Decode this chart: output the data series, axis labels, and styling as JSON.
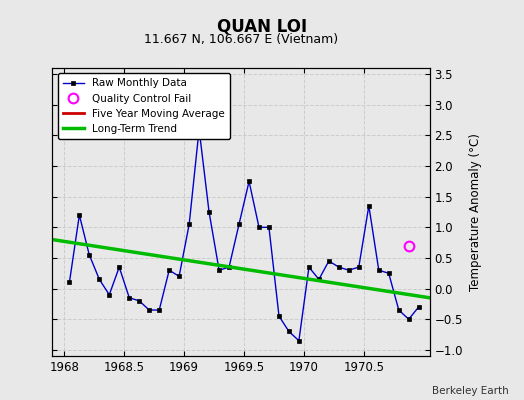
{
  "title": "QUAN LOI",
  "subtitle": "11.667 N, 106.667 E (Vietnam)",
  "ylabel": "Temperature Anomaly (°C)",
  "credit": "Berkeley Earth",
  "xlim": [
    1967.9,
    1971.05
  ],
  "ylim": [
    -1.1,
    3.6
  ],
  "xticks": [
    1968,
    1968.5,
    1969,
    1969.5,
    1970,
    1970.5
  ],
  "yticks": [
    -1,
    -0.5,
    0,
    0.5,
    1,
    1.5,
    2,
    2.5,
    3,
    3.5
  ],
  "background_color": "#e8e8e8",
  "raw_x": [
    1968.042,
    1968.125,
    1968.208,
    1968.292,
    1968.375,
    1968.458,
    1968.542,
    1968.625,
    1968.708,
    1968.792,
    1968.875,
    1968.958,
    1969.042,
    1969.125,
    1969.208,
    1969.292,
    1969.375,
    1969.458,
    1969.542,
    1969.625,
    1969.708,
    1969.792,
    1969.875,
    1969.958,
    1970.042,
    1970.125,
    1970.208,
    1970.292,
    1970.375,
    1970.458,
    1970.542,
    1970.625,
    1970.708,
    1970.792,
    1970.875,
    1970.958
  ],
  "raw_y": [
    0.1,
    1.2,
    0.55,
    0.15,
    -0.1,
    0.35,
    -0.15,
    -0.2,
    -0.35,
    -0.35,
    0.3,
    0.2,
    1.05,
    2.6,
    1.25,
    0.3,
    0.35,
    1.05,
    1.75,
    1.0,
    1.0,
    -0.45,
    -0.7,
    -0.85,
    0.35,
    0.15,
    0.45,
    0.35,
    0.3,
    0.35,
    1.35,
    0.3,
    0.25,
    -0.35,
    -0.5,
    -0.3
  ],
  "qc_x": [
    1970.875
  ],
  "qc_y": [
    0.7
  ],
  "trend_x": [
    1967.9,
    1971.05
  ],
  "trend_y": [
    0.8,
    -0.15
  ],
  "raw_color": "#0000cc",
  "raw_marker_color": "#000000",
  "qc_color": "#ff00ff",
  "trend_color": "#00bb00",
  "moving_avg_color": "#cc0000",
  "legend_loc": "upper left",
  "figsize": [
    5.24,
    4.0
  ],
  "dpi": 100
}
